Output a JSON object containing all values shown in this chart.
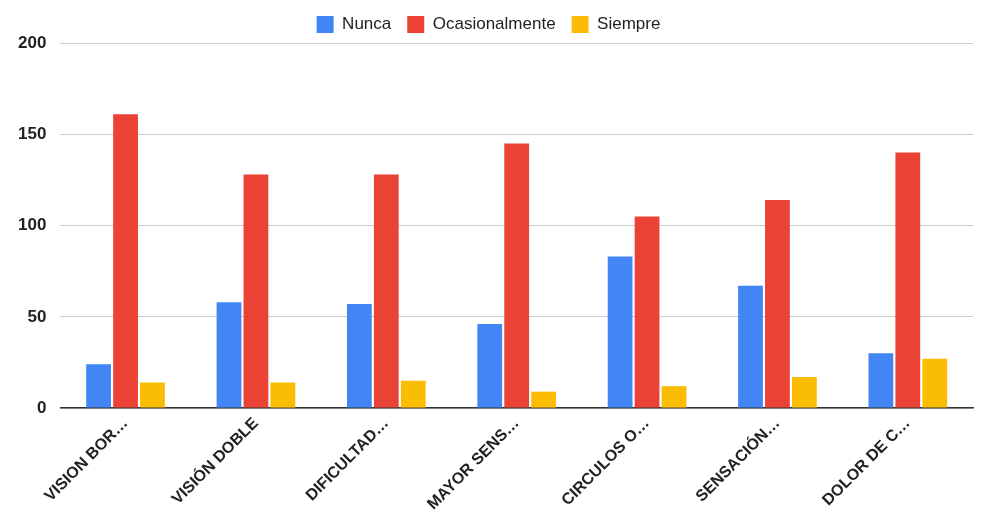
{
  "chart_data": {
    "type": "bar",
    "categories": [
      "VISION BOR…",
      "VISIÓN DOBLE",
      "DIFICULTAD…",
      "MAYOR SENS…",
      "CIRCULOS O…",
      "SENSACIÓN…",
      "DOLOR DE C…"
    ],
    "series": [
      {
        "name": "Nunca",
        "color": "#4285f4",
        "values": [
          24,
          58,
          57,
          46,
          83,
          67,
          30
        ]
      },
      {
        "name": "Ocasionalmente",
        "color": "#ea4335",
        "values": [
          161,
          128,
          128,
          145,
          105,
          114,
          140
        ]
      },
      {
        "name": "Siempre",
        "color": "#fbbc04",
        "values": [
          14,
          14,
          15,
          9,
          12,
          17,
          27
        ]
      }
    ],
    "ylim": [
      0,
      200
    ],
    "yticks": [
      0,
      50,
      100,
      150,
      200
    ],
    "grid": "y",
    "legend": "top"
  }
}
